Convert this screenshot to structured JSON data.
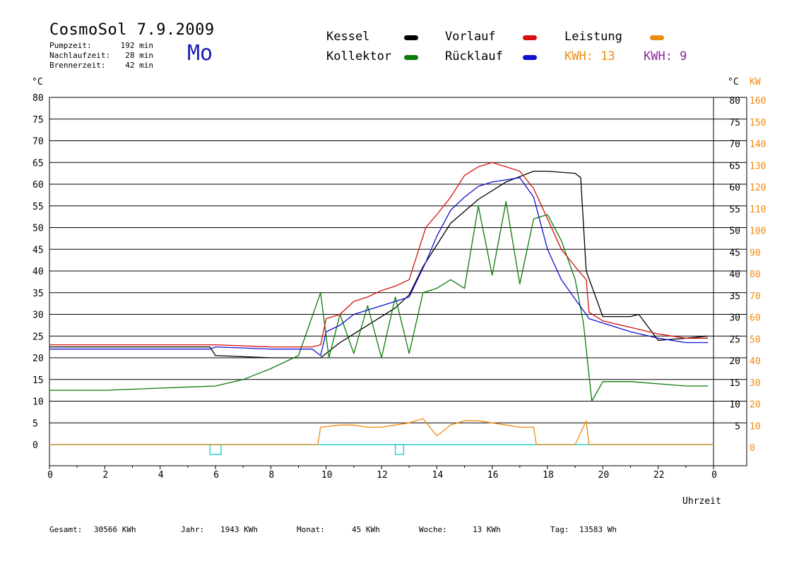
{
  "header": {
    "title": "CosmoSol 7.9.2009",
    "weekday": "Mo",
    "stats": [
      {
        "label": "Pumpzeit:",
        "value": "192 min"
      },
      {
        "label": "Nachlaufzeit:",
        "value": "28 min"
      },
      {
        "label": "Brennerzeit:",
        "value": "42 min"
      }
    ]
  },
  "legend": {
    "kessel": "Kessel",
    "kollektor": "Kollektor",
    "vorlauf": "Vorlauf",
    "ruecklauf": "Rücklauf",
    "leistung": "Leistung",
    "kwh_orange": "KWH: 13",
    "kwh_purple": "KWH: 9"
  },
  "colors": {
    "kessel": "#000000",
    "kollektor": "#0a7a0a",
    "vorlauf": "#d81010",
    "ruecklauf": "#1010d0",
    "leistung": "#f08a10",
    "kwh_purple": "#8a2a9a",
    "baseline": "#30d0d0"
  },
  "footer": {
    "gesamt_label": "Gesamt:",
    "gesamt_value": "30566 KWh",
    "jahr_label": "Jahr:",
    "jahr_value": "1943 KWh",
    "monat_label": "Monat:",
    "monat_value": "45 KWh",
    "woche_label": "Woche:",
    "woche_value": "13 KWh",
    "tag_label": "Tag:",
    "tag_value": "13583 Wh"
  },
  "chart_data": {
    "type": "line",
    "xlabel": "Uhrzeit",
    "ylabel_left": "°C",
    "ylabel_right_c": "°C",
    "ylabel_right_kw": "KW",
    "xlim": [
      0,
      24
    ],
    "ylim": [
      0,
      80
    ],
    "x_ticks": [
      "0",
      "2",
      "4",
      "6",
      "8",
      "10",
      "12",
      "14",
      "16",
      "18",
      "20",
      "22",
      "0"
    ],
    "y_ticks_left": [
      "0",
      "5",
      "10",
      "15",
      "20",
      "25",
      "30",
      "35",
      "40",
      "45",
      "50",
      "55",
      "60",
      "65",
      "70",
      "75",
      "80"
    ],
    "y_ticks_right_c": [
      "5",
      "10",
      "15",
      "20",
      "25",
      "30",
      "35",
      "40",
      "45",
      "50",
      "55",
      "60",
      "65",
      "70",
      "75",
      "80"
    ],
    "y_ticks_right_kw": [
      "0",
      "10",
      "20",
      "30",
      "40",
      "50",
      "60",
      "70",
      "80",
      "90",
      "100",
      "110",
      "120",
      "130",
      "140",
      "150",
      "160"
    ],
    "grid": true,
    "series": [
      {
        "name": "Kessel",
        "color": "#000000",
        "x": [
          0,
          5.8,
          6.0,
          8.0,
          9.8,
          10.5,
          11.5,
          12.5,
          13.0,
          13.5,
          14.5,
          15.5,
          16.5,
          17.5,
          18.0,
          19.0,
          19.2,
          19.4,
          20.0,
          21.0,
          21.3,
          22.0,
          23.0,
          23.8
        ],
        "y": [
          22.5,
          22.5,
          20.5,
          20.0,
          20.0,
          23.5,
          27.5,
          31.5,
          34.5,
          41.0,
          51.0,
          56.5,
          60.5,
          63.0,
          63.0,
          62.5,
          61.5,
          40.0,
          29.5,
          29.5,
          30.0,
          24.0,
          24.5,
          25.0
        ]
      },
      {
        "name": "Kollektor",
        "color": "#0a7a0a",
        "x": [
          0,
          2,
          4,
          6,
          7,
          8,
          9,
          9.8,
          10.1,
          10.5,
          11.0,
          11.5,
          12.0,
          12.5,
          13.0,
          13.5,
          14.0,
          14.5,
          15.0,
          15.5,
          16.0,
          16.5,
          17.0,
          17.5,
          18.0,
          18.5,
          19.0,
          19.3,
          19.6,
          20.0,
          21.0,
          22.0,
          23.0,
          23.8
        ],
        "y": [
          12.5,
          12.5,
          13.0,
          13.5,
          15.0,
          17.5,
          20.5,
          35.0,
          20.0,
          30.0,
          21.0,
          32.0,
          20.0,
          34.0,
          21.0,
          35.0,
          36.0,
          38.0,
          36.0,
          55.0,
          39.0,
          56.0,
          37.0,
          52.0,
          53.0,
          47.0,
          38.0,
          28.0,
          10.0,
          14.5,
          14.5,
          14.0,
          13.5,
          13.5
        ]
      },
      {
        "name": "Vorlauf",
        "color": "#d81010",
        "x": [
          0,
          5.8,
          6.0,
          8.0,
          9.5,
          9.8,
          10.0,
          10.5,
          11.0,
          11.5,
          12.0,
          12.5,
          13.0,
          13.3,
          13.6,
          14.0,
          14.5,
          15.0,
          15.5,
          16.0,
          16.5,
          17.0,
          17.5,
          18.0,
          18.5,
          19.0,
          19.4,
          19.5,
          20.0,
          21.0,
          22.0,
          23.0,
          23.8
        ],
        "y": [
          23.0,
          23.0,
          23.0,
          22.5,
          22.5,
          23.0,
          29.0,
          30.0,
          33.0,
          34.0,
          35.5,
          36.5,
          38.0,
          44.0,
          50.0,
          53.0,
          57.0,
          62.0,
          64.0,
          65.0,
          64.0,
          63.0,
          59.0,
          52.0,
          45.0,
          41.0,
          38.0,
          30.5,
          28.5,
          27.0,
          25.5,
          24.5,
          24.5
        ]
      },
      {
        "name": "Rücklauf",
        "color": "#1010d0",
        "x": [
          0,
          5.8,
          6.0,
          8.0,
          9.5,
          9.8,
          10.0,
          10.5,
          11.0,
          11.5,
          12.0,
          12.5,
          13.0,
          13.3,
          13.6,
          14.0,
          14.5,
          15.0,
          15.5,
          16.0,
          16.5,
          17.0,
          17.5,
          18.0,
          18.5,
          19.0,
          19.4,
          19.5,
          20.0,
          21.0,
          22.0,
          23.0,
          23.8
        ],
        "y": [
          22.0,
          22.0,
          22.5,
          22.0,
          22.0,
          20.5,
          26.0,
          27.5,
          30.0,
          31.0,
          32.0,
          33.0,
          34.0,
          38.0,
          42.0,
          48.0,
          54.0,
          57.0,
          59.5,
          60.5,
          61.0,
          61.5,
          57.0,
          45.0,
          38.0,
          33.5,
          30.0,
          29.0,
          28.0,
          26.0,
          24.5,
          23.5,
          23.5
        ]
      },
      {
        "name": "Leistung",
        "color": "#f08a10",
        "x": [
          0,
          9.7,
          9.8,
          10.5,
          11.0,
          11.5,
          12.0,
          12.5,
          13.0,
          13.5,
          14.0,
          14.5,
          15.0,
          15.5,
          16.0,
          16.5,
          17.0,
          17.5,
          17.6,
          19.0,
          19.4,
          19.5,
          24.0
        ],
        "y": [
          0,
          0,
          4.0,
          4.5,
          4.5,
          4.0,
          4.0,
          4.5,
          5.0,
          6.0,
          2.0,
          4.5,
          5.5,
          5.5,
          5.0,
          4.5,
          4.0,
          4.0,
          0,
          0,
          5.5,
          0,
          0
        ]
      }
    ],
    "markers": [
      {
        "name": "Pumpe",
        "x": [
          5.8,
          6.2
        ],
        "shape": "rect"
      },
      {
        "name": "Pumpe",
        "x": [
          12.5,
          12.8
        ],
        "shape": "rect"
      }
    ],
    "footer_label": "Uhrzeit"
  }
}
